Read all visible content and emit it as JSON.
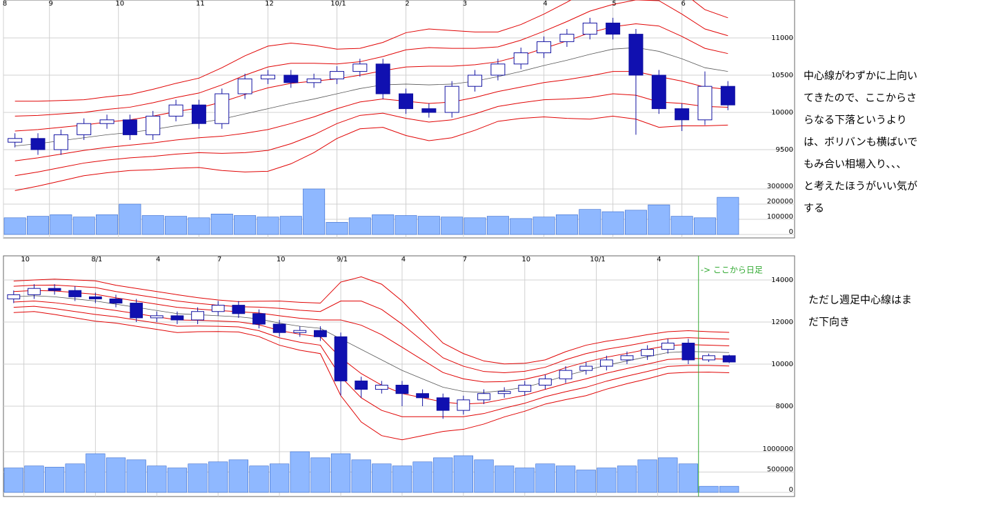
{
  "chart_data": [
    {
      "type": "candlestick",
      "xlim": [
        0,
        32
      ],
      "xticks": [
        {
          "value": 0,
          "label": "8"
        },
        {
          "value": 2,
          "label": "9"
        },
        {
          "value": 5,
          "label": "10"
        },
        {
          "value": 8.5,
          "label": "11"
        },
        {
          "value": 11.5,
          "label": "12"
        },
        {
          "value": 14.5,
          "label": "10/1"
        },
        {
          "value": 17.5,
          "label": "2"
        },
        {
          "value": 20,
          "label": "3"
        },
        {
          "value": 23.5,
          "label": "4"
        },
        {
          "value": 26.5,
          "label": "5"
        },
        {
          "value": 29.5,
          "label": "6"
        }
      ],
      "ylim": [
        9000,
        11500
      ],
      "yticks": [
        9500,
        10000,
        10500,
        11000
      ],
      "open": [
        9600,
        9650,
        9500,
        9700,
        9850,
        9900,
        9700,
        9950,
        10100,
        9850,
        10250,
        10450,
        10500,
        10400,
        10450,
        10550,
        10650,
        10250,
        10050,
        10000,
        10350,
        10500,
        10650,
        10800,
        10950,
        11050,
        11200,
        11050,
        10500,
        10050,
        9900,
        10350
      ],
      "high": [
        9720,
        9720,
        9770,
        9920,
        9970,
        9970,
        10020,
        10170,
        10170,
        10320,
        10520,
        10570,
        10570,
        10520,
        10620,
        10720,
        10720,
        10320,
        10120,
        10420,
        10570,
        10720,
        10870,
        11020,
        11120,
        11270,
        11270,
        11120,
        10570,
        10120,
        10550,
        10420
      ],
      "low": [
        9530,
        9430,
        9430,
        9630,
        9780,
        9630,
        9630,
        9880,
        9780,
        9780,
        10180,
        10380,
        10330,
        10330,
        10380,
        10480,
        10180,
        9980,
        9930,
        9930,
        10280,
        10430,
        10580,
        10730,
        10880,
        10980,
        10980,
        9700,
        9980,
        9750,
        9830,
        10030
      ],
      "close": [
        9650,
        9500,
        9700,
        9850,
        9900,
        9700,
        9950,
        10100,
        9850,
        10250,
        10450,
        10500,
        10400,
        10450,
        10550,
        10650,
        10250,
        10050,
        10000,
        10350,
        10500,
        10650,
        10800,
        10950,
        11050,
        11200,
        11050,
        10500,
        10050,
        9900,
        10350,
        10100
      ],
      "center": [
        9550,
        9580,
        9620,
        9660,
        9700,
        9730,
        9770,
        9820,
        9860,
        9910,
        9980,
        10050,
        10120,
        10180,
        10250,
        10320,
        10370,
        10380,
        10370,
        10380,
        10420,
        10480,
        10550,
        10630,
        10700,
        10780,
        10850,
        10870,
        10820,
        10720,
        10600,
        10550
      ],
      "sigma": [
        200,
        190,
        180,
        170,
        170,
        170,
        180,
        190,
        200,
        230,
        260,
        280,
        270,
        240,
        200,
        180,
        190,
        230,
        250,
        240,
        220,
        200,
        210,
        230,
        260,
        290,
        300,
        320,
        340,
        300,
        260,
        240
      ],
      "band_multipliers": [
        1,
        2,
        3
      ],
      "volume": [
        110000,
        120000,
        130000,
        115000,
        130000,
        200000,
        125000,
        120000,
        110000,
        135000,
        125000,
        115000,
        120000,
        300000,
        80000,
        110000,
        130000,
        125000,
        120000,
        115000,
        110000,
        120000,
        105000,
        115000,
        130000,
        165000,
        150000,
        160000,
        195000,
        120000,
        110000,
        245000
      ],
      "volume_ylim": [
        0,
        300000
      ],
      "volume_yticks": [
        0,
        100000,
        200000,
        300000
      ]
    },
    {
      "type": "candlestick",
      "xlim": [
        0,
        36
      ],
      "xticks": [
        {
          "value": 1,
          "label": "10"
        },
        {
          "value": 4.5,
          "label": "8/1"
        },
        {
          "value": 7.5,
          "label": "4"
        },
        {
          "value": 10.5,
          "label": "7"
        },
        {
          "value": 13.5,
          "label": "10"
        },
        {
          "value": 16.5,
          "label": "9/1"
        },
        {
          "value": 19.5,
          "label": "4"
        },
        {
          "value": 22.5,
          "label": "7"
        },
        {
          "value": 25.5,
          "label": "10"
        },
        {
          "value": 29,
          "label": "10/1"
        },
        {
          "value": 32,
          "label": "4"
        }
      ],
      "ylim": [
        6000,
        15000
      ],
      "yticks": [
        8000,
        10000,
        12000,
        14000
      ],
      "open": [
        13100,
        13300,
        13600,
        13500,
        13200,
        13100,
        12900,
        12200,
        12300,
        12100,
        12500,
        12800,
        12400,
        11900,
        11500,
        11600,
        11300,
        9200,
        8800,
        9000,
        8600,
        8400,
        7800,
        8300,
        8600,
        8700,
        9000,
        9300,
        9700,
        9900,
        10200,
        10400,
        10700,
        11000,
        10200,
        10400
      ],
      "high": [
        13500,
        13800,
        13800,
        13700,
        13400,
        13300,
        13100,
        12500,
        12500,
        12700,
        13000,
        13000,
        12600,
        12100,
        11800,
        11800,
        11500,
        9400,
        9200,
        9200,
        8800,
        8600,
        8500,
        8800,
        8900,
        9200,
        9500,
        9900,
        10100,
        10400,
        10600,
        10900,
        11200,
        11200,
        10500,
        10450
      ],
      "low": [
        12900,
        13100,
        13300,
        13000,
        12900,
        12700,
        12000,
        12000,
        11900,
        11900,
        12300,
        12200,
        11700,
        11300,
        11300,
        11100,
        8500,
        8400,
        8600,
        8000,
        8000,
        7400,
        7600,
        8100,
        8400,
        8500,
        8800,
        9100,
        9500,
        9700,
        10000,
        10200,
        10500,
        10000,
        10100,
        10050
      ],
      "close": [
        13300,
        13600,
        13500,
        13200,
        13100,
        12900,
        12200,
        12300,
        12100,
        12500,
        12800,
        12400,
        11900,
        11500,
        11600,
        11300,
        9200,
        8800,
        9000,
        8600,
        8400,
        7800,
        8300,
        8600,
        8700,
        9000,
        9300,
        9700,
        9900,
        10200,
        10400,
        10700,
        11000,
        10200,
        10400,
        10100
      ],
      "center": [
        13200,
        13250,
        13200,
        13100,
        13000,
        12850,
        12700,
        12550,
        12400,
        12350,
        12300,
        12250,
        12150,
        11950,
        11800,
        11700,
        11200,
        10700,
        10200,
        9700,
        9300,
        8900,
        8700,
        8650,
        8750,
        8900,
        9150,
        9450,
        9700,
        9950,
        10150,
        10350,
        10550,
        10600,
        10580,
        10550
      ],
      "sigma": [
        250,
        250,
        280,
        300,
        320,
        300,
        300,
        300,
        300,
        270,
        250,
        240,
        280,
        350,
        380,
        400,
        900,
        1150,
        1200,
        1100,
        900,
        700,
        600,
        500,
        420,
        380,
        350,
        380,
        400,
        380,
        360,
        350,
        330,
        330,
        320,
        320
      ],
      "band_multipliers": [
        1,
        2,
        3
      ],
      "volume": [
        600000,
        650000,
        620000,
        700000,
        950000,
        850000,
        800000,
        650000,
        600000,
        700000,
        750000,
        800000,
        650000,
        700000,
        1000000,
        850000,
        950000,
        800000,
        700000,
        650000,
        750000,
        850000,
        900000,
        800000,
        650000,
        600000,
        700000,
        650000,
        550000,
        600000,
        650000,
        800000,
        850000,
        700000,
        150000,
        150000
      ],
      "volume_ylim": [
        0,
        1000000
      ],
      "volume_yticks": [
        0,
        {
          "value": 500000,
          "label": "500000"
        },
        1000000
      ],
      "marker": {
        "x": 34,
        "label": "-> ここから日足"
      }
    }
  ],
  "notes": [
    [
      "中心線がわずかに上向い",
      "てきたので、ここからさ",
      "らなる下落というより",
      "は、ボリバンも横ばいで",
      "もみ合い相場入り、、、",
      "と考えたほうがいい気が",
      "する"
    ],
    [
      "ただし週足中心線はま",
      "だ下向き"
    ]
  ]
}
